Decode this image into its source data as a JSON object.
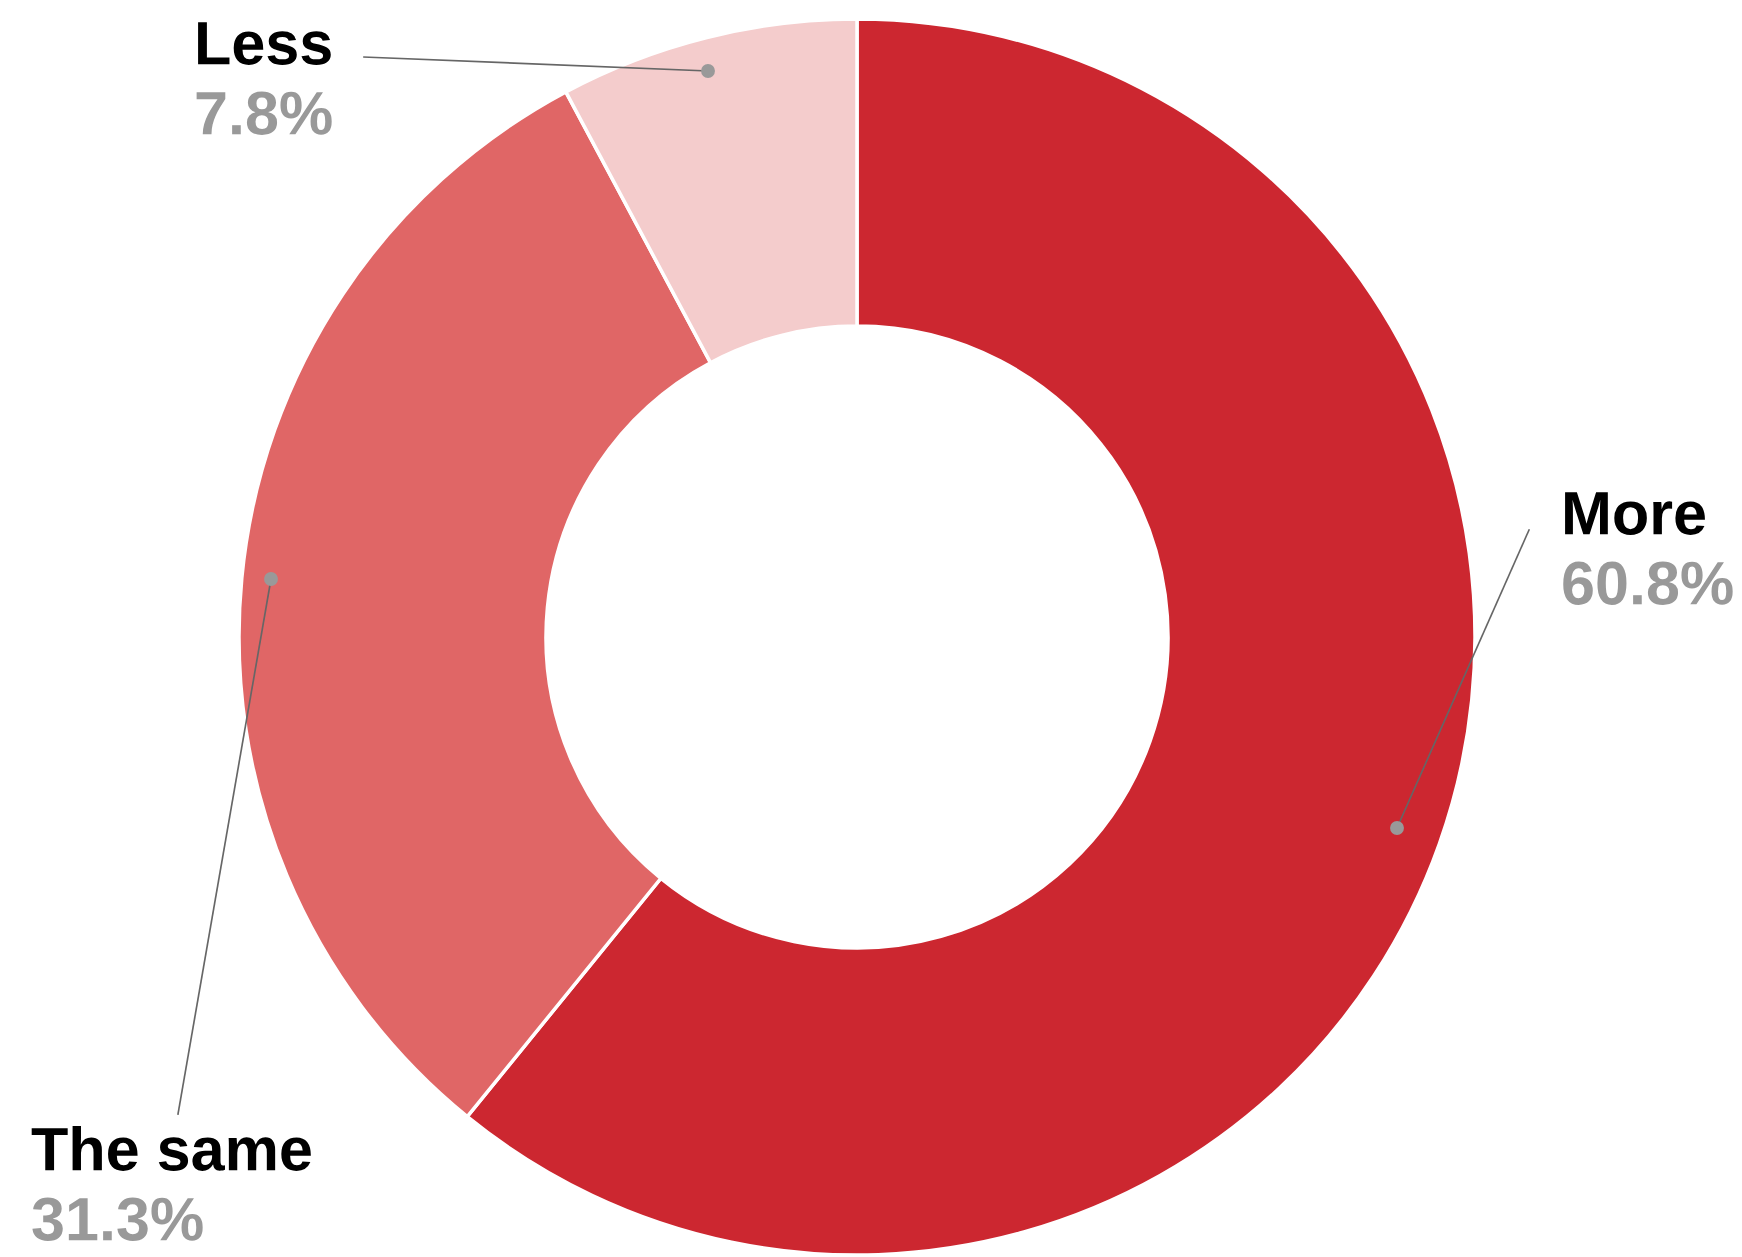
{
  "chart_data": {
    "type": "donut",
    "categories": [
      "More",
      "The same",
      "Less"
    ],
    "values": [
      60.8,
      31.3,
      7.8
    ],
    "colors": [
      "#cc2730",
      "#e06666",
      "#f4cccc"
    ],
    "value_labels": [
      "60.8%",
      "31.3%",
      "7.8%"
    ],
    "legend": false
  }
}
